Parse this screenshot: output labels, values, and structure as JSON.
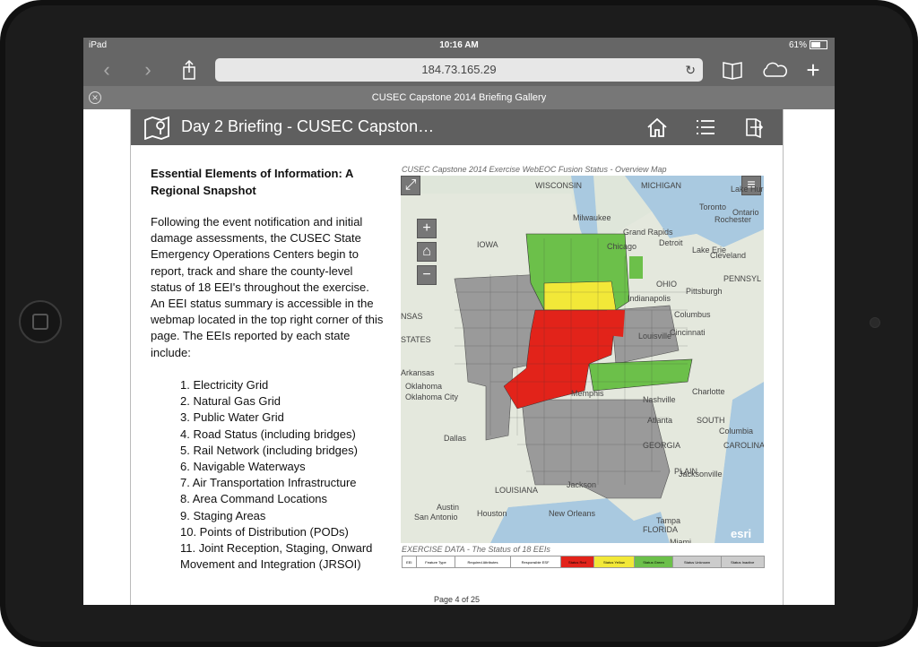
{
  "status_bar": {
    "device": "iPad",
    "time": "10:16 AM",
    "battery": "61%"
  },
  "browser": {
    "url": "184.73.165.29",
    "tab_title": "CUSEC Capstone 2014 Briefing Gallery"
  },
  "page": {
    "title": "Day 2 Briefing - CUSEC Capston…",
    "heading_line1": "Essential Elements of Information: A",
    "heading_line2": "Regional Snapshot",
    "paragraph": "Following the event notification and initial damage assessments, the CUSEC State Emergency Operations Centers begin to report, track and share the county-level status of 18 EEI's throughout the exercise. An EEI status summary is accessible in the webmap located in the top right corner of this page.  The EEIs reported by each state include:",
    "eei_items": [
      "1. Electricity Grid",
      "2. Natural Gas Grid",
      "3. Public Water Grid",
      "4. Road Status (including bridges)",
      "5. Rail Network (including bridges)",
      "6. Navigable Waterways",
      "7. Air Transportation Infrastructure",
      "8. Area Command Locations",
      "9. Staging Areas",
      "10. Points of Distribution (PODs)",
      "11. Joint Reception, Staging, Onward Movement and Integration (JRSOI)"
    ],
    "map_caption": "CUSEC Capstone 2014 Exercise WebEOC Fusion Status - Overview Map",
    "exercise_caption": "EXERCISE DATA - The Status of 18 EEIs",
    "page_number": "Page 4 of 25"
  },
  "map": {
    "zoom_in": "+",
    "zoom_out": "−",
    "attribution": "esri",
    "labels": [
      "WISCONSIN",
      "MICHIGAN",
      "Milwaukee",
      "Grand Rapids",
      "Detroit",
      "Toronto",
      "Rochester",
      "Ontario",
      "Lake Erie",
      "Cleveland",
      "Chicago",
      "IOWA",
      "OHIO",
      "Pittsburgh",
      "PENNSYL",
      "Columbus",
      "Indianapolis",
      "NSAS",
      "STATES",
      "Oklahoma City",
      "Nashville",
      "Charlotte",
      "Atlanta",
      "SOUTH",
      "GEORGIA",
      "Dallas",
      "Jackson",
      "LOUISIANA",
      "Austin",
      "San Antonio",
      "Houston",
      "New Orleans",
      "Jacksonville",
      "FLORIDA",
      "Tampa",
      "Miami",
      "CAROLINA",
      "PLAIN",
      "Columbia",
      "Cincinnati",
      "Louisville",
      "Memphis",
      "Arkansas",
      "Oklahoma",
      "Lake Huron"
    ],
    "colors": {
      "red": "#e2231a",
      "green": "#6cc04a",
      "yellow": "#f2e838",
      "gray": "#8d8d8d",
      "water": "#a9c9e0"
    }
  },
  "exercise_table": {
    "columns": [
      "EEI",
      "Feature Type",
      "Required Attributes",
      "Responsible ESF",
      "Status Red",
      "Status Yellow",
      "Status Green",
      "Status Unknown",
      "Status Inactive"
    ]
  }
}
